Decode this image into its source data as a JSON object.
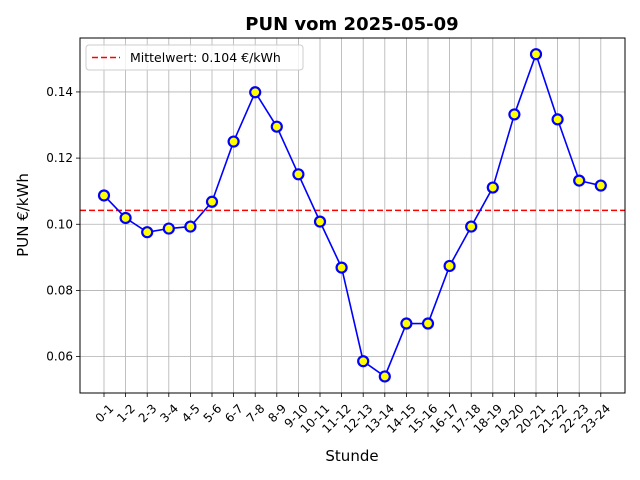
{
  "chart_data": {
    "type": "line",
    "title": "PUN vom 2025-05-09",
    "xlabel": "Stunde",
    "ylabel": "PUN €/kWh",
    "categories": [
      "0-1",
      "1-2",
      "2-3",
      "3-4",
      "4-5",
      "5-6",
      "6-7",
      "7-8",
      "8-9",
      "9-10",
      "10-11",
      "11-12",
      "12-13",
      "13-14",
      "14-15",
      "15-16",
      "16-17",
      "17-18",
      "18-19",
      "19-20",
      "20-21",
      "21-22",
      "22-23",
      "23-24"
    ],
    "series": [
      {
        "values": [
          0.1087,
          0.1019,
          0.0976,
          0.0987,
          0.0993,
          0.1068,
          0.125,
          0.1399,
          0.1295,
          0.1151,
          0.1008,
          0.0869,
          0.0586,
          0.054,
          0.07,
          0.07,
          0.0874,
          0.0993,
          0.1111,
          0.1332,
          0.1514,
          0.1317,
          0.1132,
          0.1117
        ],
        "line_color": "#0000ff",
        "marker_face": "#ffff00",
        "marker_edge": "#0000ff"
      }
    ],
    "reference_line": {
      "label": "Mittelwert: 0.104 €/kWh",
      "value": 0.1042,
      "color": "#ff0000",
      "style": "dashed"
    },
    "ylim": [
      0.049,
      0.1563
    ],
    "yticks": [
      0.06,
      0.08,
      0.1,
      0.12,
      0.14
    ],
    "ytick_labels": [
      "0.06",
      "0.08",
      "0.10",
      "0.12",
      "0.14"
    ],
    "grid": true,
    "legend_position": "top-left"
  }
}
